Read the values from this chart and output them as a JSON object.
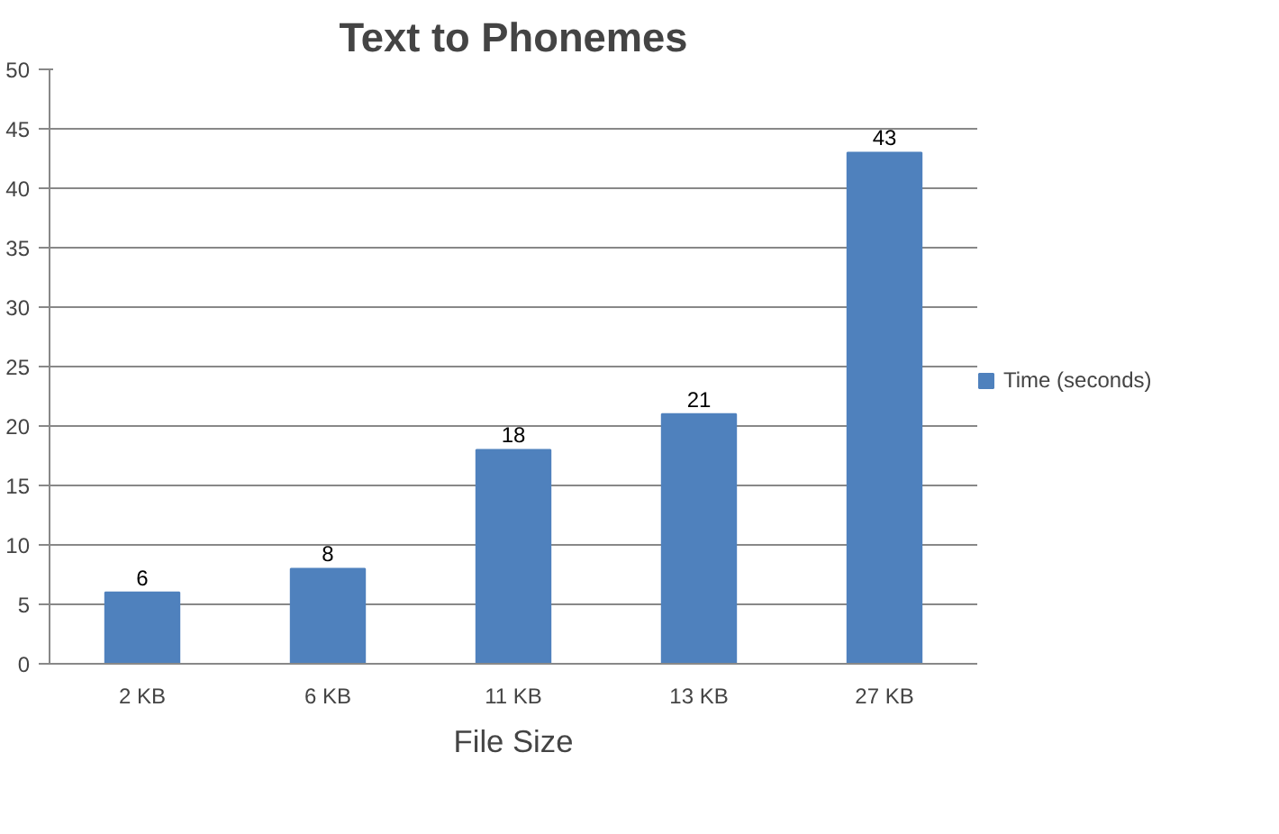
{
  "chart_data": {
    "type": "bar",
    "title": "Text to Phonemes",
    "xlabel": "File Size",
    "categories": [
      "2 KB",
      "6 KB",
      "11 KB",
      "13 KB",
      "27 KB"
    ],
    "series": [
      {
        "name": "Time (seconds)",
        "color": "#4f81bd",
        "values": [
          6,
          8,
          18,
          21,
          43
        ]
      }
    ],
    "ylim": [
      0,
      50
    ],
    "yticks": [
      0,
      5,
      10,
      15,
      20,
      25,
      30,
      35,
      40,
      45,
      50
    ],
    "grid": "y",
    "legend": "right",
    "data_labels": true
  }
}
